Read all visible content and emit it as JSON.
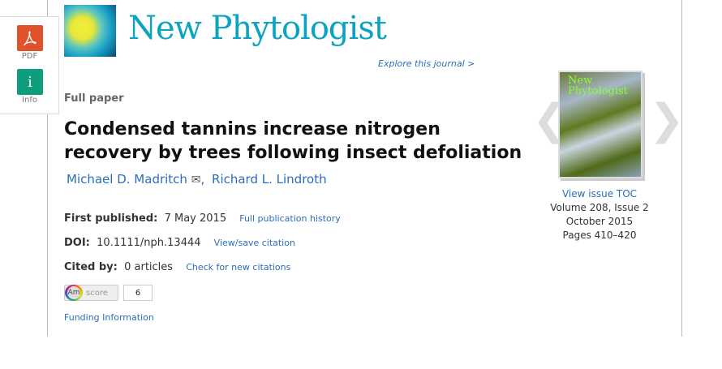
{
  "sidebar": {
    "pdf_label": "PDF",
    "info_label": "Info",
    "info_glyph": "i"
  },
  "journal": {
    "name": "New Phytologist",
    "explore": "Explore this journal >",
    "accent": "#0aa3c2"
  },
  "article": {
    "type": "Full paper",
    "title": "Condensed tannins increase nitrogen recovery by trees following insect defoliation",
    "authors": [
      {
        "name": "Michael D. Madritch"
      },
      {
        "name": "Richard L. Lindroth"
      }
    ],
    "first_published_label": "First published:",
    "first_published": "7 May 2015",
    "history_link": "Full publication history",
    "doi_label": "DOI:",
    "doi": "10.1111/nph.13444",
    "citation_link": "View/save citation",
    "cited_label": "Cited by:",
    "cited": "0 articles",
    "check_link": "Check for new citations",
    "altmetric": {
      "logo": "Am",
      "label": "score",
      "value": "6"
    },
    "funding": "Funding Information"
  },
  "issue": {
    "cover_title": "New Phytologist",
    "toc_link": "View issue TOC",
    "volume": "Volume 208, Issue 2",
    "date": "October 2015",
    "pages": "Pages 410–420",
    "prev": "❮",
    "next": "❯"
  }
}
